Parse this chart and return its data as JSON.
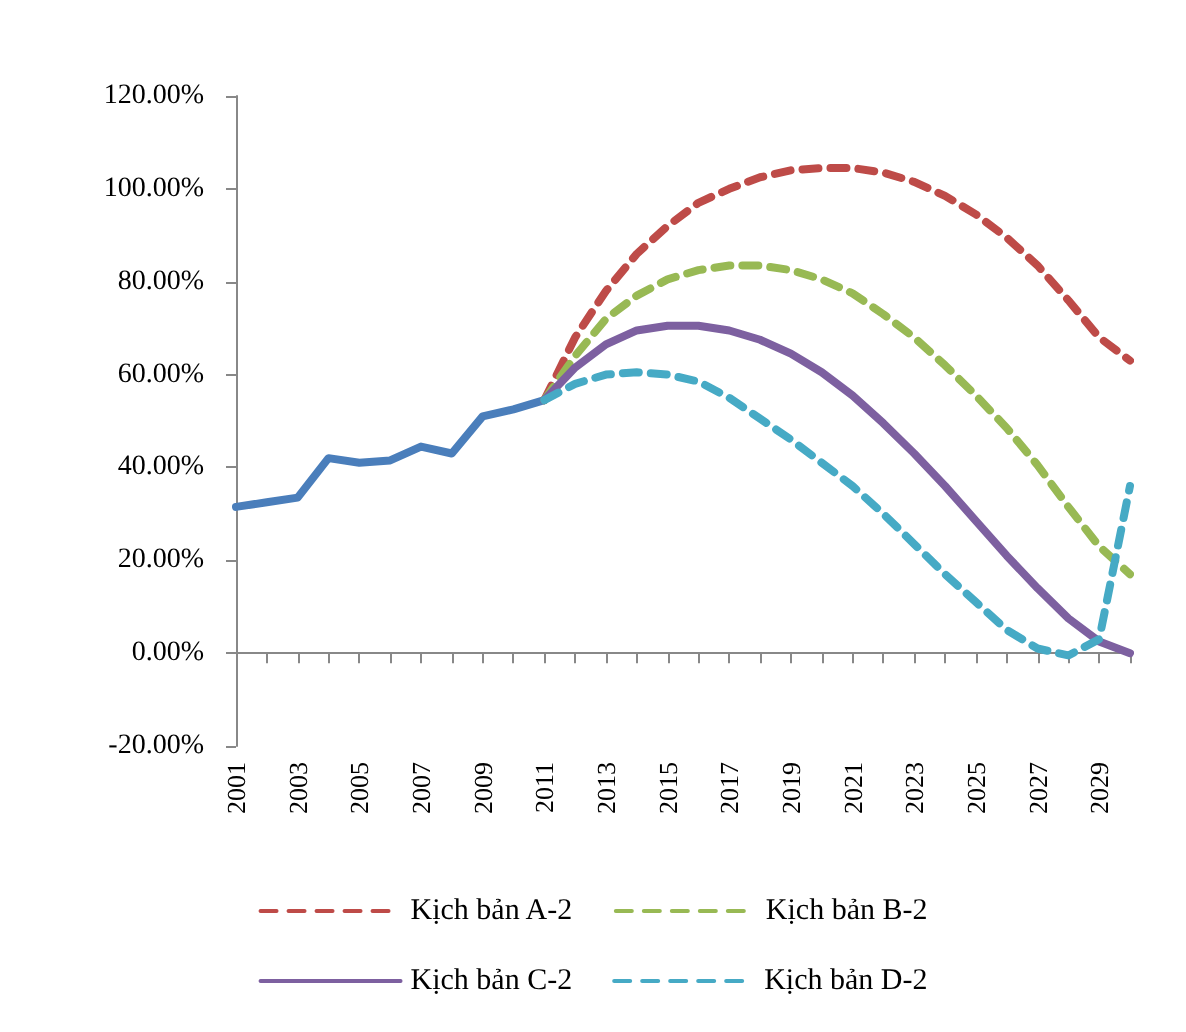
{
  "chart_data": {
    "type": "line",
    "categories": [
      "2001",
      null,
      "2003",
      null,
      "2005",
      null,
      "2007",
      null,
      "2009",
      null,
      "2011",
      null,
      "2013",
      null,
      "2015",
      null,
      "2017",
      null,
      "2019",
      null,
      "2021",
      null,
      "2023",
      null,
      "2025",
      null,
      "2027",
      null,
      "2029",
      null
    ],
    "ylim": [
      -20,
      120
    ],
    "yticks": [
      {
        "value": -20,
        "label": "-20.00%"
      },
      {
        "value": 0,
        "label": "0.00%"
      },
      {
        "value": 20,
        "label": "20.00%"
      },
      {
        "value": 40,
        "label": "40.00%"
      },
      {
        "value": 60,
        "label": "60.00%"
      },
      {
        "value": 80,
        "label": "80.00%"
      },
      {
        "value": 100,
        "label": "100.00%"
      },
      {
        "value": 120,
        "label": "120.00%"
      }
    ],
    "legend": "bottom",
    "marker": "none",
    "series": [
      {
        "color": "#4a7ebb",
        "line_style": "solid",
        "values": [
          31.5,
          32.5,
          33.5,
          42,
          41,
          41.5,
          44.5,
          43,
          51,
          52.5,
          54.5,
          null,
          null,
          null,
          null,
          null,
          null,
          null,
          null,
          null,
          null,
          null,
          null,
          null,
          null,
          null,
          null,
          null,
          null,
          null
        ]
      },
      {
        "name": "Kịch bản A-2",
        "color": "#be4b48",
        "line_style": "dashed",
        "values": [
          null,
          null,
          null,
          null,
          null,
          null,
          null,
          null,
          null,
          null,
          54.5,
          68,
          78,
          86,
          92,
          97,
          100,
          102.5,
          104,
          104.5,
          104.5,
          103.5,
          101.5,
          98.5,
          94.5,
          89.5,
          83.5,
          76,
          68,
          63
        ]
      },
      {
        "name": "Kịch bản B-2",
        "color": "#98b954",
        "line_style": "dashed",
        "values": [
          null,
          null,
          null,
          null,
          null,
          null,
          null,
          null,
          null,
          null,
          54.5,
          64,
          72,
          77,
          80.5,
          82.5,
          83.5,
          83.5,
          82.5,
          80.5,
          77.5,
          73,
          68,
          62,
          55.5,
          48.5,
          40.5,
          31.5,
          23,
          17
        ]
      },
      {
        "name": "Kịch bản C-2",
        "color": "#7d60a0",
        "line_style": "solid",
        "values": [
          null,
          null,
          null,
          null,
          null,
          null,
          null,
          null,
          null,
          null,
          54.5,
          61.5,
          66.5,
          69.5,
          70.5,
          70.5,
          69.5,
          67.5,
          64.5,
          60.5,
          55.5,
          49.5,
          43,
          36,
          28.5,
          21,
          14,
          7.5,
          2.5,
          0
        ]
      },
      {
        "name": "Kịch bản D-2",
        "color": "#46aac5",
        "line_style": "dashed",
        "values": [
          null,
          null,
          null,
          null,
          null,
          null,
          null,
          null,
          null,
          null,
          54.5,
          58,
          60,
          60.5,
          60,
          58.5,
          55,
          50.5,
          46,
          41,
          36,
          30,
          23.5,
          17,
          11,
          5,
          1,
          -0.5,
          3,
          36
        ]
      }
    ]
  }
}
